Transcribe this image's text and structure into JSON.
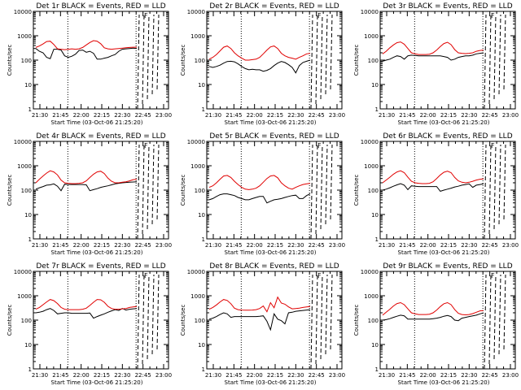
{
  "chart_data": [
    {
      "type": "line",
      "title": "Det 1r BLACK = Events, RED = LLD",
      "ylabel": "Counts/sec",
      "xlabel": "Start Time (03-Oct-06 21:25:20)",
      "legend": {
        "black": "Events",
        "red": "LLD"
      },
      "x_ticks": [
        "21:30",
        "21:45",
        "22:00",
        "22:15",
        "22:30",
        "22:45",
        "23:00"
      ],
      "y_ticks": [
        "1",
        "10",
        "100",
        "1000",
        "10000"
      ],
      "ylim": [
        1,
        10000
      ],
      "yscale": "log",
      "black_values": [
        300,
        230,
        200,
        130,
        115,
        280,
        280,
        260,
        150,
        130,
        145,
        175,
        250,
        260,
        210,
        230,
        190,
        110,
        110,
        120,
        130,
        150,
        170,
        230,
        280,
        290,
        300,
        310,
        300
      ],
      "red_values": [
        330,
        380,
        460,
        580,
        600,
        440,
        290,
        280,
        270,
        280,
        290,
        280,
        290,
        330,
        420,
        530,
        630,
        600,
        470,
        320,
        290,
        280,
        290,
        300,
        310,
        320,
        330,
        340,
        340
      ],
      "label_corner": "F"
    },
    {
      "type": "line",
      "title": "Det 2r BLACK = Events, RED = LLD",
      "ylabel": "Counts/sec",
      "xlabel": "Start Time (03-Oct-06 21:25:20)",
      "legend": {
        "black": "Events",
        "red": "LLD"
      },
      "x_ticks": [
        "21:30",
        "21:45",
        "22:00",
        "22:15",
        "22:30",
        "22:45",
        "23:00"
      ],
      "y_ticks": [
        "1",
        "10",
        "100",
        "1000",
        "10000"
      ],
      "ylim": [
        1,
        10000
      ],
      "yscale": "log",
      "black_values": [
        55,
        50,
        55,
        62,
        75,
        88,
        90,
        85,
        70,
        55,
        45,
        40,
        42,
        40,
        40,
        35,
        38,
        45,
        60,
        75,
        88,
        80,
        65,
        50,
        30,
        60,
        80,
        90,
        100
      ],
      "red_values": [
        110,
        130,
        170,
        240,
        340,
        380,
        300,
        200,
        150,
        120,
        100,
        100,
        105,
        110,
        130,
        180,
        260,
        350,
        380,
        300,
        190,
        150,
        130,
        120,
        110,
        130,
        150,
        180,
        190
      ],
      "label_corner": "F"
    },
    {
      "type": "line",
      "title": "Det 3r BLACK = Events, RED = LLD",
      "ylabel": "Counts/sec",
      "xlabel": "Start Time (03-Oct-06 21:25:20)",
      "legend": {
        "black": "Events",
        "red": "LLD"
      },
      "x_ticks": [
        "21:30",
        "21:45",
        "22:00",
        "22:15",
        "22:30",
        "22:45",
        "23:00"
      ],
      "y_ticks": [
        "1",
        "10",
        "100",
        "1000",
        "10000"
      ],
      "ylim": [
        1,
        10000
      ],
      "yscale": "log",
      "black_values": [
        90,
        100,
        110,
        130,
        150,
        140,
        110,
        150,
        160,
        155,
        150,
        150,
        150,
        150,
        150,
        150,
        150,
        140,
        130,
        100,
        110,
        130,
        140,
        150,
        150,
        160,
        180,
        190,
        200
      ],
      "red_values": [
        180,
        230,
        320,
        420,
        520,
        560,
        450,
        300,
        200,
        180,
        170,
        170,
        170,
        175,
        200,
        260,
        360,
        480,
        540,
        430,
        270,
        200,
        190,
        185,
        190,
        200,
        230,
        250,
        260
      ],
      "label_corner": "F"
    },
    {
      "type": "line",
      "title": "Det 4r BLACK = Events, RED = LLD",
      "ylabel": "Counts/sec",
      "xlabel": "Start Time (03-Oct-06 21:25:20)",
      "legend": {
        "black": "Events",
        "red": "LLD"
      },
      "x_ticks": [
        "21:30",
        "21:45",
        "22:00",
        "22:15",
        "22:30",
        "22:45",
        "23:00"
      ],
      "y_ticks": [
        "1",
        "10",
        "100",
        "1000",
        "10000"
      ],
      "ylim": [
        1,
        10000
      ],
      "yscale": "log",
      "black_values": [
        110,
        125,
        140,
        160,
        165,
        180,
        145,
        95,
        175,
        170,
        170,
        170,
        170,
        170,
        165,
        95,
        105,
        115,
        130,
        140,
        150,
        165,
        180,
        190,
        200,
        205,
        210,
        215,
        220
      ],
      "red_values": [
        200,
        280,
        380,
        500,
        620,
        560,
        420,
        260,
        200,
        190,
        185,
        185,
        190,
        200,
        240,
        330,
        450,
        560,
        600,
        480,
        310,
        230,
        200,
        200,
        210,
        220,
        240,
        270,
        280
      ],
      "label_corner": "F"
    },
    {
      "type": "line",
      "title": "Det 5r BLACK = Events, RED = LLD",
      "ylabel": "Counts/sec",
      "xlabel": "Start Time (03-Oct-06 21:25:20)",
      "legend": {
        "black": "Events",
        "red": "LLD"
      },
      "x_ticks": [
        "21:30",
        "21:45",
        "22:00",
        "22:15",
        "22:30",
        "22:45",
        "23:00"
      ],
      "y_ticks": [
        "1",
        "10",
        "100",
        "1000",
        "10000"
      ],
      "ylim": [
        1,
        10000
      ],
      "yscale": "log",
      "black_values": [
        40,
        45,
        55,
        65,
        70,
        70,
        65,
        60,
        50,
        45,
        40,
        40,
        45,
        50,
        55,
        55,
        30,
        35,
        40,
        42,
        45,
        50,
        55,
        60,
        62,
        45,
        45,
        60,
        70
      ],
      "red_values": [
        130,
        150,
        200,
        280,
        380,
        400,
        330,
        230,
        170,
        130,
        110,
        105,
        110,
        120,
        150,
        210,
        300,
        380,
        400,
        320,
        200,
        150,
        120,
        110,
        130,
        150,
        170,
        180,
        190
      ],
      "label_corner": "F"
    },
    {
      "type": "line",
      "title": "Det 6r BLACK = Events, RED = LLD",
      "ylabel": "Counts/sec",
      "xlabel": "Start Time (03-Oct-06 21:25:20)",
      "legend": {
        "black": "Events",
        "red": "LLD"
      },
      "x_ticks": [
        "21:30",
        "21:45",
        "22:00",
        "22:15",
        "22:30",
        "22:45",
        "23:00"
      ],
      "y_ticks": [
        "1",
        "10",
        "100",
        "1000",
        "10000"
      ],
      "ylim": [
        1,
        10000
      ],
      "yscale": "log",
      "black_values": [
        100,
        110,
        125,
        145,
        165,
        185,
        160,
        105,
        150,
        145,
        140,
        140,
        140,
        140,
        140,
        140,
        90,
        100,
        110,
        120,
        135,
        145,
        160,
        170,
        180,
        130,
        160,
        170,
        180
      ],
      "red_values": [
        200,
        260,
        340,
        450,
        560,
        620,
        520,
        340,
        230,
        200,
        190,
        185,
        185,
        190,
        220,
        300,
        420,
        540,
        600,
        520,
        330,
        240,
        210,
        200,
        210,
        230,
        260,
        280,
        290
      ],
      "label_corner": "F"
    },
    {
      "type": "line",
      "title": "Det 7r BLACK = Events, RED = LLD",
      "ylabel": "Counts/sec",
      "xlabel": "Start Time (03-Oct-06 21:25:20)",
      "legend": {
        "black": "Events",
        "red": "LLD"
      },
      "x_ticks": [
        "21:30",
        "21:45",
        "22:00",
        "22:15",
        "22:30",
        "22:45",
        "23:00"
      ],
      "y_ticks": [
        "1",
        "10",
        "100",
        "1000",
        "10000"
      ],
      "ylim": [
        1,
        10000
      ],
      "yscale": "log",
      "black_values": [
        200,
        210,
        230,
        270,
        300,
        250,
        180,
        190,
        200,
        200,
        190,
        190,
        190,
        190,
        190,
        195,
        120,
        140,
        160,
        180,
        210,
        240,
        270,
        250,
        300,
        260,
        280,
        290,
        300
      ],
      "red_values": [
        280,
        330,
        430,
        560,
        700,
        630,
        480,
        330,
        280,
        270,
        270,
        270,
        270,
        280,
        310,
        400,
        540,
        700,
        680,
        540,
        370,
        300,
        280,
        280,
        290,
        300,
        330,
        350,
        360
      ],
      "label_corner": "F"
    },
    {
      "type": "line",
      "title": "Det 8r BLACK = Events, RED = LLD",
      "ylabel": "Counts/sec",
      "xlabel": "Start Time (03-Oct-06 21:25:20)",
      "legend": {
        "black": "Events",
        "red": "LLD"
      },
      "x_ticks": [
        "21:30",
        "21:45",
        "22:00",
        "22:15",
        "22:30",
        "22:45",
        "23:00"
      ],
      "y_ticks": [
        "1",
        "10",
        "100",
        "1000",
        "10000"
      ],
      "ylim": [
        1,
        10000
      ],
      "yscale": "log",
      "black_values": [
        110,
        120,
        140,
        170,
        200,
        180,
        130,
        140,
        140,
        140,
        140,
        140,
        140,
        140,
        145,
        150,
        90,
        40,
        180,
        110,
        95,
        70,
        200,
        210,
        230,
        240,
        250,
        260,
        270
      ],
      "red_values": [
        280,
        330,
        420,
        560,
        700,
        640,
        470,
        310,
        270,
        260,
        255,
        255,
        260,
        270,
        300,
        380,
        220,
        520,
        320,
        880,
        500,
        450,
        350,
        290,
        300,
        310,
        330,
        350,
        360
      ],
      "label_corner": "F"
    },
    {
      "type": "line",
      "title": "Det 9r BLACK = Events, RED = LLD",
      "ylabel": "Counts/sec",
      "xlabel": "Start Time (03-Oct-06 21:25:20)",
      "legend": {
        "black": "Events",
        "red": "LLD"
      },
      "x_ticks": [
        "21:30",
        "21:45",
        "22:00",
        "22:15",
        "22:30",
        "22:45",
        "23:00"
      ],
      "y_ticks": [
        "1",
        "10",
        "100",
        "1000",
        "10000"
      ],
      "ylim": [
        1,
        10000
      ],
      "yscale": "log",
      "black_values": [
        100,
        105,
        115,
        130,
        145,
        160,
        150,
        110,
        110,
        110,
        110,
        110,
        110,
        110,
        115,
        120,
        130,
        145,
        155,
        140,
        100,
        95,
        120,
        130,
        140,
        150,
        160,
        180,
        200
      ],
      "red_values": [
        160,
        210,
        280,
        380,
        480,
        520,
        430,
        290,
        200,
        180,
        170,
        170,
        170,
        175,
        200,
        260,
        360,
        470,
        520,
        430,
        270,
        190,
        170,
        165,
        170,
        185,
        210,
        240,
        250
      ],
      "label_corner": "F"
    }
  ]
}
